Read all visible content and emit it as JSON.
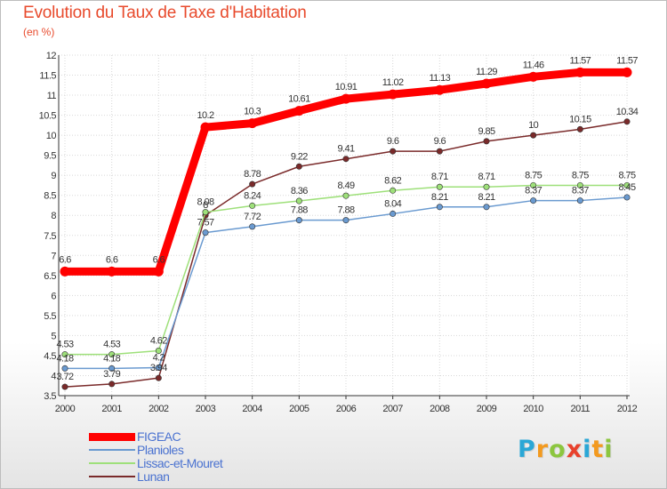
{
  "chart_data": {
    "type": "line",
    "title": "Evolution du Taux de Taxe d'Habitation",
    "ylabel": "(en %)",
    "xlabel": "",
    "x": [
      "2000",
      "2001",
      "2002",
      "2003",
      "2004",
      "2005",
      "2006",
      "2007",
      "2008",
      "2009",
      "2010",
      "2011",
      "2012"
    ],
    "ylim": [
      3.5,
      12
    ],
    "yticks": [
      "3.5",
      "4",
      "4.5",
      "5",
      "5.5",
      "6",
      "6.5",
      "7",
      "7.5",
      "8",
      "8.5",
      "9",
      "9.5",
      "10",
      "10.5",
      "11",
      "11.5",
      "12"
    ],
    "grid": true,
    "legend_position": "bottom-left",
    "series": [
      {
        "name": "FIGEAC",
        "color": "#ff0000",
        "values": [
          6.6,
          6.6,
          6.6,
          10.2,
          10.3,
          10.61,
          10.91,
          11.02,
          11.13,
          11.29,
          11.46,
          11.57,
          11.57
        ],
        "labels": [
          "6.6",
          "6.6",
          "6.6",
          "10.2",
          "10.3",
          "10.61",
          "10.91",
          "11.02",
          "11.13",
          "11.29",
          "11.46",
          "11.57",
          "11.57"
        ]
      },
      {
        "name": "Planioles",
        "color": "#6a9ad0",
        "values": [
          4.18,
          4.18,
          4.2,
          7.57,
          7.72,
          7.88,
          7.88,
          8.04,
          8.21,
          8.21,
          8.37,
          8.37,
          8.45
        ],
        "labels": [
          "4.18",
          "4.18",
          "4.2",
          "7.57",
          "7.72",
          "7.88",
          "7.88",
          "8.04",
          "8.21",
          "8.21",
          "8.37",
          "8.37",
          "8.45"
        ]
      },
      {
        "name": "Lissac-et-Mouret",
        "color": "#9ee07a",
        "values": [
          4.53,
          4.53,
          4.62,
          8.08,
          8.24,
          8.36,
          8.49,
          8.62,
          8.71,
          8.71,
          8.75,
          8.75,
          8.75
        ],
        "labels": [
          "4.53",
          "4.53",
          "4.62",
          "8.08",
          "8.24",
          "8.36",
          "8.49",
          "8.62",
          "8.71",
          "8.71",
          "8.75",
          "8.75",
          "8.75"
        ]
      },
      {
        "name": "Lunan",
        "color": "#7a2a2a",
        "values": [
          3.72,
          3.79,
          3.94,
          8,
          8.78,
          9.22,
          9.41,
          9.6,
          9.6,
          9.85,
          10,
          10.15,
          10.34
        ],
        "labels": [
          "3.72",
          "3.79",
          "3.94",
          "8",
          "8.78",
          "9.22",
          "9.41",
          "9.6",
          "9.6",
          "9.85",
          "10",
          "10.15",
          "10.34"
        ]
      }
    ]
  },
  "logo": {
    "letters": [
      "P",
      "r",
      "o",
      "x",
      "i",
      "t",
      "i"
    ],
    "colors": [
      "#2aa7d6",
      "#f39a1f",
      "#8cc63f",
      "#e8412c",
      "#2aa7d6",
      "#f39a1f",
      "#8cc63f"
    ]
  }
}
